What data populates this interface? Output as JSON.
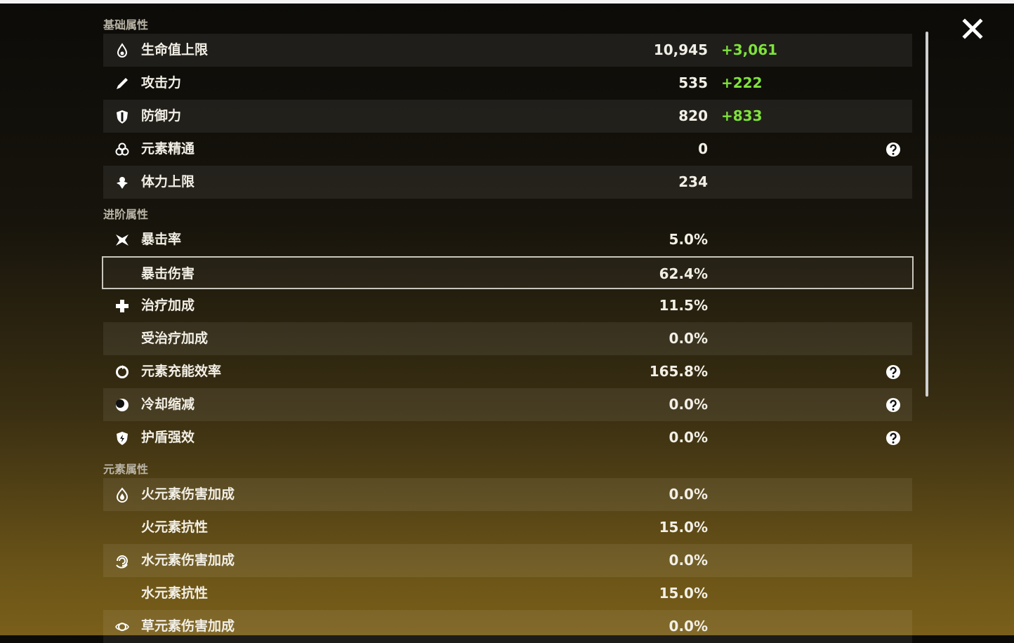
{
  "sections": [
    {
      "title": "基础属性",
      "rows": [
        {
          "label": "生命值上限",
          "value": "10,945",
          "bonus": "+3,061"
        },
        {
          "label": "攻击力",
          "value": "535",
          "bonus": "+222"
        },
        {
          "label": "防御力",
          "value": "820",
          "bonus": "+833"
        },
        {
          "label": "元素精通",
          "value": "0",
          "help": true
        },
        {
          "label": "体力上限",
          "value": "234"
        }
      ]
    },
    {
      "title": "进阶属性",
      "rows": [
        {
          "label": "暴击率",
          "value": "5.0%"
        },
        {
          "label": "暴击伤害",
          "value": "62.4%",
          "selected": true
        },
        {
          "label": "治疗加成",
          "value": "11.5%"
        },
        {
          "label": "受治疗加成",
          "value": "0.0%"
        },
        {
          "label": "元素充能效率",
          "value": "165.8%",
          "help": true
        },
        {
          "label": "冷却缩减",
          "value": "0.0%",
          "help": true
        },
        {
          "label": "护盾强效",
          "value": "0.0%",
          "help": true
        }
      ]
    },
    {
      "title": "元素属性",
      "rows": [
        {
          "label": "火元素伤害加成",
          "value": "0.0%"
        },
        {
          "label": "火元素抗性",
          "value": "15.0%"
        },
        {
          "label": "水元素伤害加成",
          "value": "0.0%"
        },
        {
          "label": "水元素抗性",
          "value": "15.0%"
        },
        {
          "label": "草元素伤害加成",
          "value": "0.0%"
        }
      ]
    }
  ]
}
